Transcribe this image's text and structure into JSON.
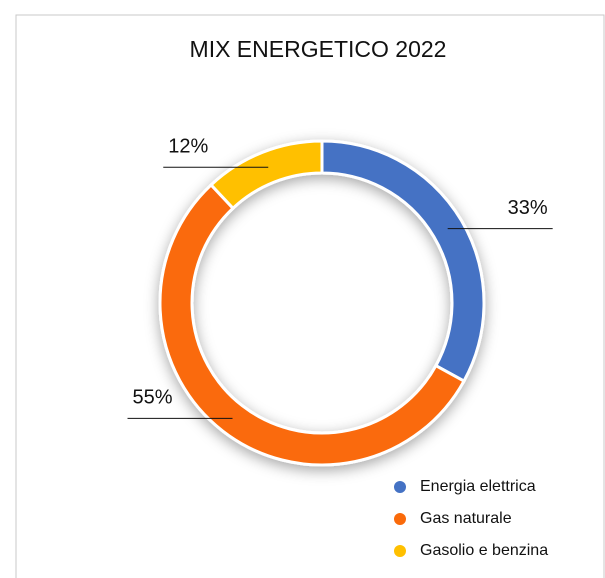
{
  "chart_data": {
    "type": "pie",
    "title": "MIX ENERGETICO 2022",
    "categories": [
      "Energia elettrica",
      "Gas naturale",
      "Gasolio e benzina"
    ],
    "values": [
      33,
      55,
      12
    ],
    "value_labels": [
      "33%",
      "55%",
      "12%"
    ],
    "colors": [
      "#4472c4",
      "#fa6a0a",
      "#ffc000"
    ],
    "donut": true,
    "legend": "bottom-right"
  }
}
